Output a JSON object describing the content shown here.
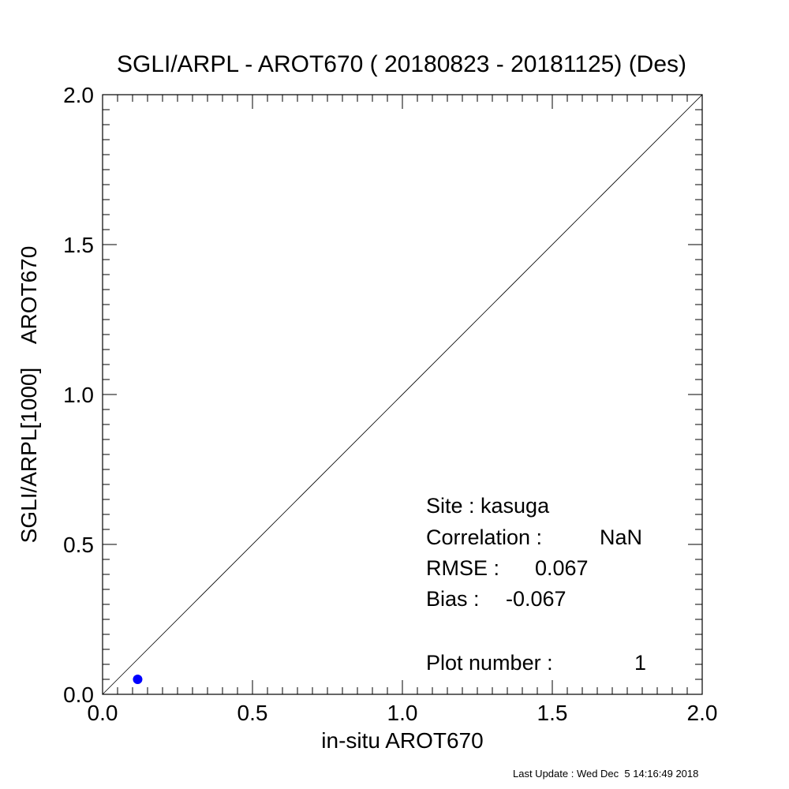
{
  "chart_data": {
    "type": "scatter",
    "title": "SGLI/ARPL - AROT670 ( 20180823 - 20181125) (Des)",
    "xlabel": "in-situ AROT670",
    "ylabel": "SGLI/ARPL[1000]    AROT670",
    "xlim": [
      0.0,
      2.0
    ],
    "ylim": [
      0.0,
      2.0
    ],
    "xticks": [
      0.0,
      0.5,
      1.0,
      1.5,
      2.0
    ],
    "yticks": [
      0.0,
      0.5,
      1.0,
      1.5,
      2.0
    ],
    "tick_labels": [
      "0.0",
      "0.5",
      "1.0",
      "1.5",
      "2.0"
    ],
    "minor_tick_step": 0.05,
    "grid": false,
    "reference_line": {
      "from": [
        0.0,
        0.0
      ],
      "to": [
        2.0,
        2.0
      ]
    },
    "points": [
      {
        "x": 0.117,
        "y": 0.05
      }
    ],
    "point_color": "#0000ff",
    "stats": {
      "site_line": "Site : kasuga",
      "correlation_label": "Correlation :",
      "correlation_value": "NaN",
      "rmse_label": "RMSE :",
      "rmse_value": "0.067",
      "bias_label": "Bias :",
      "bias_value": "-0.067",
      "plot_number_label": "Plot number :",
      "plot_number_value": "1"
    },
    "footer": "Last Update : Wed Dec  5 14:16:49 2018"
  }
}
